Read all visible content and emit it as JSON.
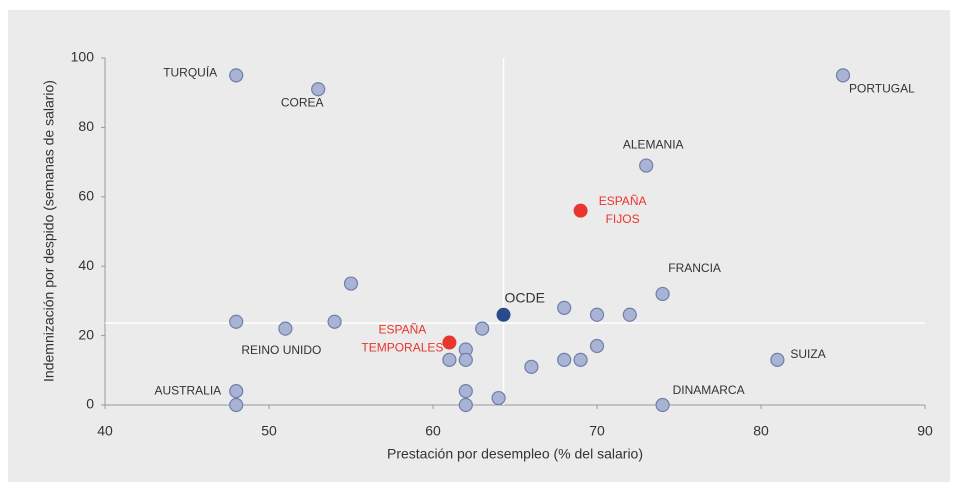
{
  "chart_data": {
    "type": "scatter",
    "x_label": "Prestación por desempleo (% del salario)",
    "y_label": "Indemnización por despido (semanas de salario)",
    "xlim": [
      40,
      90
    ],
    "xticks": [
      40,
      50,
      60,
      70,
      80,
      90
    ],
    "ylim": [
      0,
      100
    ],
    "yticks": [
      0,
      20,
      40,
      60,
      80,
      100
    ],
    "reference_x": 64.3,
    "reference_y": 23.6,
    "x": [
      48,
      53,
      85,
      73,
      69,
      74,
      81,
      74,
      48,
      48,
      48,
      51,
      54,
      55,
      61,
      61,
      62,
      62,
      63,
      62,
      62,
      64,
      64.3,
      66,
      68,
      68,
      69,
      70,
      70,
      72
    ],
    "values": [
      95,
      91,
      95,
      69,
      56,
      32,
      13,
      0,
      4,
      0,
      24,
      22,
      24,
      35,
      18,
      13,
      16,
      13,
      22,
      4,
      0,
      2,
      26,
      11,
      28,
      13,
      13,
      26,
      17,
      26
    ],
    "colors": [
      "#a9b4d4",
      "#a9b4d4",
      "#a9b4d4",
      "#a9b4d4",
      "#e8352d",
      "#a9b4d4",
      "#a9b4d4",
      "#a9b4d4",
      "#a9b4d4",
      "#a9b4d4",
      "#a9b4d4",
      "#a9b4d4",
      "#a9b4d4",
      "#a9b4d4",
      "#e8352d",
      "#a9b4d4",
      "#a9b4d4",
      "#a9b4d4",
      "#a9b4d4",
      "#a9b4d4",
      "#a9b4d4",
      "#a9b4d4",
      "#2b4a8c",
      "#a9b4d4",
      "#a9b4d4",
      "#a9b4d4",
      "#a9b4d4",
      "#a9b4d4",
      "#a9b4d4",
      "#a9b4d4"
    ],
    "labels": [
      [
        "TURQUÍA"
      ],
      [
        "COREA"
      ],
      [
        "PORTUGAL"
      ],
      [
        "ALEMANIA"
      ],
      [
        "ESPAÑA",
        "FIJOS"
      ],
      [
        "FRANCIA"
      ],
      [
        "SUIZA"
      ],
      [
        "DINAMARCA"
      ],
      [
        "AUSTRALIA"
      ],
      null,
      null,
      [
        "REINO UNIDO"
      ],
      null,
      null,
      [
        "ESPAÑA",
        "TEMPORALES"
      ],
      null,
      null,
      null,
      null,
      null,
      null,
      null,
      [
        "OCDE"
      ],
      null,
      null,
      null,
      null,
      null,
      null,
      null
    ]
  }
}
